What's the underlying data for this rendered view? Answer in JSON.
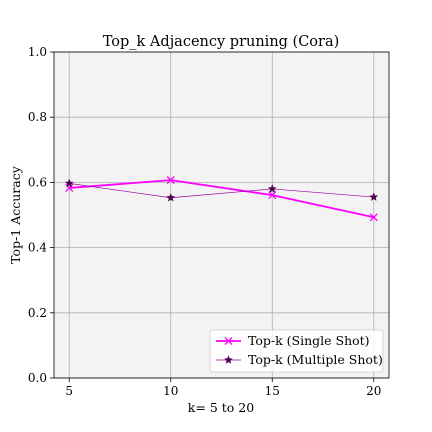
{
  "chart_data": {
    "type": "line",
    "title": "Top_k Adjacency pruning (Cora)",
    "xlabel": "k= 5 to 20",
    "ylabel": "Top-1 Accuracy",
    "x": [
      5,
      10,
      15,
      20
    ],
    "xticks": [
      5,
      10,
      15,
      20
    ],
    "xtick_labels": [
      "5",
      "10",
      "15",
      "20"
    ],
    "xlim": [
      4.25,
      20.75
    ],
    "ylim": [
      0.0,
      1.0
    ],
    "yticks": [
      0.0,
      0.2,
      0.4,
      0.6,
      0.8,
      1.0
    ],
    "ytick_labels": [
      "0.0",
      "0.2",
      "0.4",
      "0.6",
      "0.8",
      "1.0"
    ],
    "grid": true,
    "legend_position": "lower-right",
    "series": [
      {
        "name": "Top-k (Single Shot)",
        "values": [
          0.583,
          0.607,
          0.561,
          0.493
        ],
        "color": "#ff00ff",
        "marker": "x",
        "line_style": "thick"
      },
      {
        "name": "Top-k (Multiple Shot)",
        "values": [
          0.597,
          0.553,
          0.58,
          0.555
        ],
        "color": "#990099",
        "marker": "star",
        "line_style": "thin"
      }
    ]
  }
}
